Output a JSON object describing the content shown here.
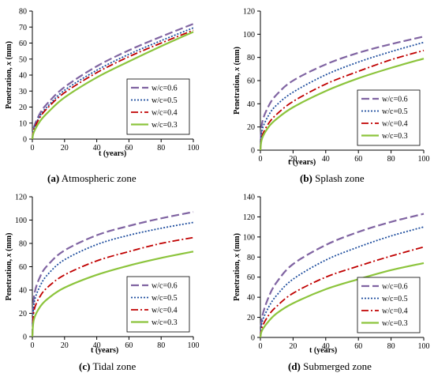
{
  "colors": {
    "w_c_0.6": "#8064A2",
    "w_c_0.5": "#1F4E9E",
    "w_c_0.4": "#C00000",
    "w_c_0.3": "#8CC43C"
  },
  "chart_data": [
    {
      "type": "line",
      "panel_letter": "(a)",
      "caption": "Atmospheric zone",
      "xlabel": "t (years)",
      "ylabel": "Penetration, x (mm)",
      "xlim": [
        0,
        100
      ],
      "ylim": [
        0,
        80
      ],
      "xticks": [
        0,
        20,
        40,
        60,
        80,
        100
      ],
      "yticks": [
        0,
        10,
        20,
        30,
        40,
        50,
        60,
        70,
        80
      ],
      "legend_position": "bottom-right",
      "series": [
        {
          "name": "w/c=0.6",
          "x": [
            0,
            1,
            5,
            10,
            20,
            40,
            60,
            80,
            100
          ],
          "values": [
            0,
            7.5,
            16.5,
            23,
            32.5,
            45.5,
            55.5,
            64,
            72
          ]
        },
        {
          "name": "w/c=0.5",
          "x": [
            0,
            1,
            5,
            10,
            20,
            40,
            60,
            80,
            100
          ],
          "values": [
            0,
            6.5,
            15,
            21,
            30.5,
            43,
            53,
            61.5,
            69.5
          ]
        },
        {
          "name": "w/c=0.4",
          "x": [
            0,
            1,
            5,
            10,
            20,
            40,
            60,
            80,
            100
          ],
          "values": [
            0,
            6,
            14,
            20,
            29,
            41.5,
            51.5,
            60,
            68
          ]
        },
        {
          "name": "w/c=0.3",
          "x": [
            0,
            1,
            5,
            10,
            20,
            40,
            60,
            80,
            100
          ],
          "values": [
            0,
            4.5,
            11.5,
            17,
            26,
            38.5,
            48.5,
            58,
            67
          ]
        }
      ]
    },
    {
      "type": "line",
      "panel_letter": "(b)",
      "caption": "Splash zone",
      "xlabel": "t (years)",
      "ylabel": "Penetration, x (mm)",
      "xlim": [
        0,
        100
      ],
      "ylim": [
        0,
        120
      ],
      "xticks": [
        0,
        20,
        40,
        60,
        80,
        100
      ],
      "yticks": [
        0,
        20,
        40,
        60,
        80,
        100,
        120
      ],
      "legend_position": "bottom-right",
      "series": [
        {
          "name": "w/c=0.6",
          "x": [
            0,
            1,
            5,
            10,
            20,
            40,
            60,
            80,
            100
          ],
          "values": [
            0,
            23,
            38,
            48,
            60,
            74,
            84,
            91.5,
            98
          ]
        },
        {
          "name": "w/c=0.5",
          "x": [
            0,
            1,
            5,
            10,
            20,
            40,
            60,
            80,
            100
          ],
          "values": [
            0,
            17,
            30,
            39,
            50,
            65,
            76,
            85,
            93
          ]
        },
        {
          "name": "w/c=0.4",
          "x": [
            0,
            1,
            5,
            10,
            20,
            40,
            60,
            80,
            100
          ],
          "values": [
            0,
            12,
            23,
            31,
            42,
            57,
            68,
            78,
            86
          ]
        },
        {
          "name": "w/c=0.3",
          "x": [
            0,
            1,
            5,
            10,
            20,
            40,
            60,
            80,
            100
          ],
          "values": [
            0,
            10,
            20,
            27,
            37,
            51,
            62,
            71,
            79
          ]
        }
      ]
    },
    {
      "type": "line",
      "panel_letter": "(c)",
      "caption": "Tidal zone",
      "xlabel": "t (years)",
      "ylabel": "Penetration, x (mm)",
      "xlim": [
        0,
        100
      ],
      "ylim": [
        0,
        120
      ],
      "xticks": [
        0,
        20,
        40,
        60,
        80,
        100
      ],
      "yticks": [
        0,
        20,
        40,
        60,
        80,
        100,
        120
      ],
      "legend_position": "bottom-right",
      "series": [
        {
          "name": "w/c=0.6",
          "x": [
            0,
            1,
            5,
            10,
            20,
            40,
            60,
            80,
            100
          ],
          "values": [
            0,
            34,
            52,
            62,
            74,
            87,
            95,
            101.5,
            107
          ]
        },
        {
          "name": "w/c=0.5",
          "x": [
            0,
            1,
            5,
            10,
            20,
            40,
            60,
            80,
            100
          ],
          "values": [
            0,
            28,
            44,
            54,
            66,
            79,
            87,
            93,
            98
          ]
        },
        {
          "name": "w/c=0.4",
          "x": [
            0,
            1,
            5,
            10,
            20,
            40,
            60,
            80,
            100
          ],
          "values": [
            0,
            22,
            35,
            43,
            53,
            65,
            73,
            80,
            85
          ]
        },
        {
          "name": "w/c=0.3",
          "x": [
            0,
            1,
            5,
            10,
            20,
            40,
            60,
            80,
            100
          ],
          "values": [
            0,
            15,
            26,
            33,
            42,
            53,
            61,
            67.5,
            73
          ]
        }
      ]
    },
    {
      "type": "line",
      "panel_letter": "(d)",
      "caption": "Submerged zone",
      "xlabel": "t (years)",
      "ylabel": "Penetration, x (mm)",
      "xlim": [
        0,
        100
      ],
      "ylim": [
        0,
        140
      ],
      "xticks": [
        0,
        20,
        40,
        60,
        80,
        100
      ],
      "yticks": [
        0,
        20,
        40,
        60,
        80,
        100,
        120,
        140
      ],
      "legend_position": "bottom-right",
      "series": [
        {
          "name": "w/c=0.6",
          "x": [
            0,
            1,
            5,
            10,
            20,
            40,
            60,
            80,
            100
          ],
          "values": [
            0,
            20,
            40,
            55,
            73,
            92,
            105,
            115,
            123
          ]
        },
        {
          "name": "w/c=0.5",
          "x": [
            0,
            1,
            5,
            10,
            20,
            40,
            60,
            80,
            100
          ],
          "values": [
            0,
            15,
            30,
            42,
            58,
            77,
            90,
            101,
            110
          ]
        },
        {
          "name": "w/c=0.4",
          "x": [
            0,
            1,
            5,
            10,
            20,
            40,
            60,
            80,
            100
          ],
          "values": [
            0,
            10,
            22,
            31,
            44,
            60,
            71,
            81,
            90
          ]
        },
        {
          "name": "w/c=0.3",
          "x": [
            0,
            1,
            5,
            10,
            20,
            40,
            60,
            80,
            100
          ],
          "values": [
            0,
            7,
            16,
            24,
            34,
            48,
            58,
            67,
            74
          ]
        }
      ]
    }
  ]
}
